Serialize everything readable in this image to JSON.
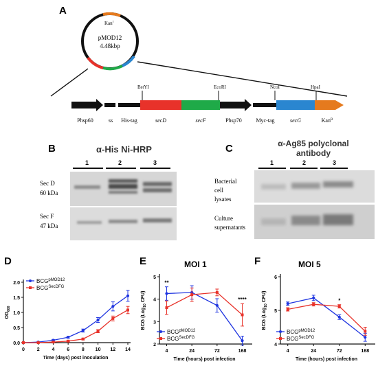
{
  "panels": {
    "A": "A",
    "B": "B",
    "C": "C",
    "D": "D",
    "E": "E",
    "F": "F"
  },
  "plasmid": {
    "name": "pMOD12",
    "size": "4.48kbp",
    "kan_label": "Kan",
    "kan_sup": "r"
  },
  "map": {
    "sites": [
      "BstYI",
      "EcoRI",
      "NcoI",
      "HpaI"
    ],
    "segments": [
      "Phsp60",
      "ss",
      "His-tag",
      "secD",
      "secF",
      "Phsp70",
      "Myc-tag",
      "secG",
      "Kan"
    ],
    "kan_sup": "R"
  },
  "blotB": {
    "title": "α-His Ni-HRP",
    "lanes": [
      "1",
      "2",
      "3"
    ],
    "row1": [
      "Sec D",
      "60 kDa"
    ],
    "row2": [
      "Sec F",
      "47 kDa"
    ]
  },
  "blotC": {
    "title_line1": "α-Ag85 polyclonal",
    "title_line2": "antibody",
    "lanes": [
      "1",
      "2",
      "3"
    ],
    "row1": [
      "Bacterial",
      "cell",
      "lysates"
    ],
    "row2": [
      "Culture",
      "supernatants"
    ]
  },
  "colors": {
    "blue": "#1f35e0",
    "red": "#e8322a",
    "green": "#1faa48",
    "orange": "#e57a1e",
    "lightblue": "#2a86d0",
    "black": "#111111"
  },
  "chart_data": [
    {
      "panel": "D",
      "type": "line",
      "title": "",
      "xlabel": "Time (days) post inoculation",
      "ylabel": "OD",
      "ylabel_sub": "600",
      "xlim": [
        0,
        14
      ],
      "ylim": [
        0,
        2.0
      ],
      "xticks": [
        "0",
        "2",
        "4",
        "6",
        "8",
        "10",
        "12",
        "14"
      ],
      "yticks": [
        "0.0",
        "0.5",
        "1.0",
        "1.5",
        "2.0"
      ],
      "x": [
        0,
        2,
        4,
        6,
        8,
        10,
        12,
        14
      ],
      "series": [
        {
          "name": "BCG",
          "name_sup": "pMOD12",
          "color": "#1f35e0",
          "values": [
            0.0,
            0.02,
            0.08,
            0.18,
            0.4,
            0.75,
            1.2,
            1.55
          ],
          "err": [
            0.01,
            0.01,
            0.02,
            0.03,
            0.05,
            0.08,
            0.15,
            0.18
          ]
        },
        {
          "name": "BCG",
          "name_sup": "SecDFG",
          "color": "#e8322a",
          "values": [
            0.0,
            0.0,
            0.02,
            0.05,
            0.12,
            0.38,
            0.8,
            1.08
          ],
          "err": [
            0.01,
            0.01,
            0.01,
            0.02,
            0.03,
            0.05,
            0.08,
            0.12
          ]
        }
      ]
    },
    {
      "panel": "E",
      "type": "line",
      "title": "MOI 1",
      "xlabel": "Time (hours) post infection",
      "ylabel": "BCG (Log",
      "ylabel_sub": "10",
      "ylabel_end": " CFU)",
      "x_categories": [
        "4",
        "24",
        "72",
        "168"
      ],
      "ylim": [
        2,
        5
      ],
      "yticks": [
        "2",
        "3",
        "4",
        "5"
      ],
      "series": [
        {
          "name": "BCG",
          "name_sup": "pMOD12",
          "color": "#1f35e0",
          "values": [
            4.25,
            4.3,
            3.72,
            2.15
          ],
          "err": [
            0.3,
            0.3,
            0.3,
            0.2
          ]
        },
        {
          "name": "BCG",
          "name_sup": "SecDFG",
          "color": "#e8322a",
          "values": [
            3.62,
            4.2,
            4.3,
            3.3
          ],
          "err": [
            0.3,
            0.3,
            0.15,
            0.5
          ]
        }
      ],
      "annotations": [
        {
          "x": "4",
          "text": "**"
        },
        {
          "x": "168",
          "text": "****"
        }
      ]
    },
    {
      "panel": "F",
      "type": "line",
      "title": "MOI 5",
      "xlabel": "Time (hours) post infection",
      "ylabel": "BCG (Log",
      "ylabel_sub": "10",
      "ylabel_end": " CFU)",
      "x_categories": [
        "4",
        "24",
        "72",
        "168"
      ],
      "ylim": [
        4,
        6
      ],
      "yticks": [
        "4",
        "5",
        "6"
      ],
      "series": [
        {
          "name": "BCG",
          "name_sup": "pMOD12",
          "color": "#1f35e0",
          "values": [
            5.2,
            5.37,
            4.8,
            4.2
          ],
          "err": [
            0.05,
            0.08,
            0.07,
            0.12
          ]
        },
        {
          "name": "BCG",
          "name_sup": "SecDFG",
          "color": "#e8322a",
          "values": [
            5.03,
            5.18,
            5.12,
            4.38
          ],
          "err": [
            0.05,
            0.05,
            0.05,
            0.12
          ]
        }
      ],
      "annotations": [
        {
          "x": "72",
          "text": "*"
        }
      ]
    }
  ]
}
